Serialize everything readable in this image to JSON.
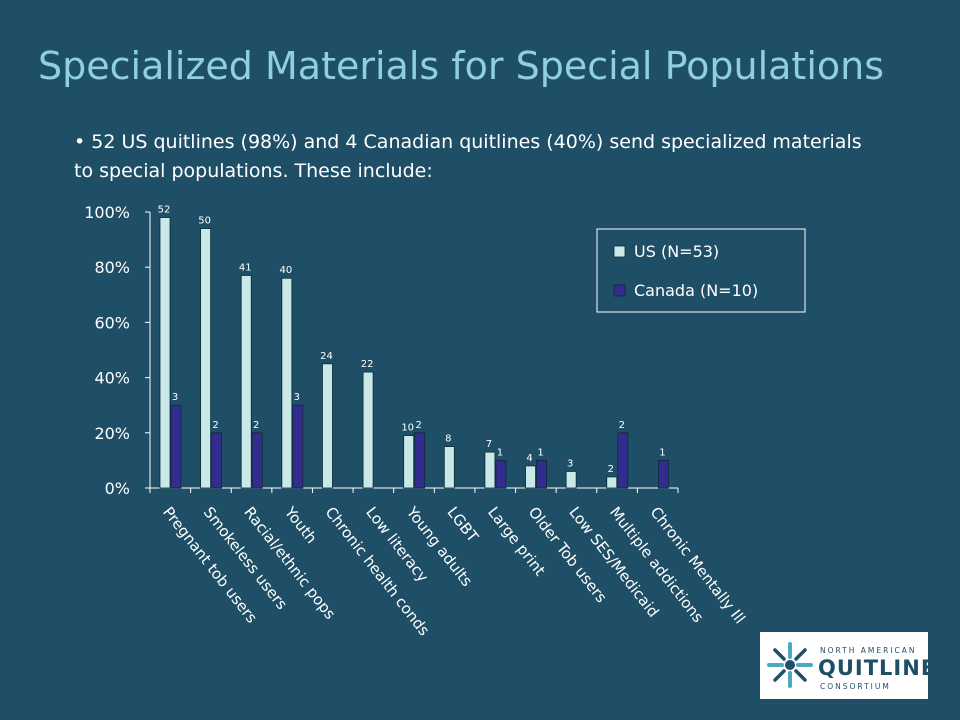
{
  "slide": {
    "title": "Specialized Materials for Special Populations",
    "bullet": "• 52 US quitlines (98%) and 4 Canadian quitlines (40%) send specialized materials to special populations. These include:"
  },
  "colors": {
    "background": "#1f4f66",
    "title": "#8fd0dc",
    "us_bar": "#c9e8e8",
    "canada_bar": "#332c8e"
  },
  "chart_data": {
    "type": "bar",
    "categories": [
      "Pregnant tob users",
      "Smokeless users",
      "Racial/ethnic pops",
      "Youth",
      "Chronic health conds",
      "Low literacy",
      "Young adults",
      "LGBT",
      "Large print",
      "Older Tob users",
      "Low SES/Medicaid",
      "Multiple addictions",
      "Chronic Mentally Ill"
    ],
    "y_ticks": [
      "100%",
      "80%",
      "60%",
      "40%",
      "20%",
      "0%"
    ],
    "ylim": [
      0,
      100
    ],
    "legend_position": "top-right",
    "grid": false,
    "series": [
      {
        "name": "US (N=53)",
        "values": [
          98,
          94,
          77,
          76,
          45,
          42,
          19,
          15,
          13,
          8,
          6,
          4,
          null
        ],
        "labels": [
          "52",
          "50",
          "41",
          "40",
          "24",
          "22",
          "10",
          "8",
          "7",
          "4",
          "3",
          "2",
          ""
        ]
      },
      {
        "name": "Canada (N=10)",
        "values": [
          30,
          20,
          20,
          30,
          null,
          null,
          20,
          null,
          10,
          10,
          null,
          20,
          10
        ],
        "labels": [
          "3",
          "2",
          "2",
          "3",
          "",
          "",
          "2",
          "",
          "1",
          "1",
          "",
          "2",
          "1"
        ]
      }
    ]
  },
  "logo": {
    "line1": "NORTH AMERICAN",
    "line2": "QUITLINE",
    "line3": "CONSORTIUM"
  }
}
